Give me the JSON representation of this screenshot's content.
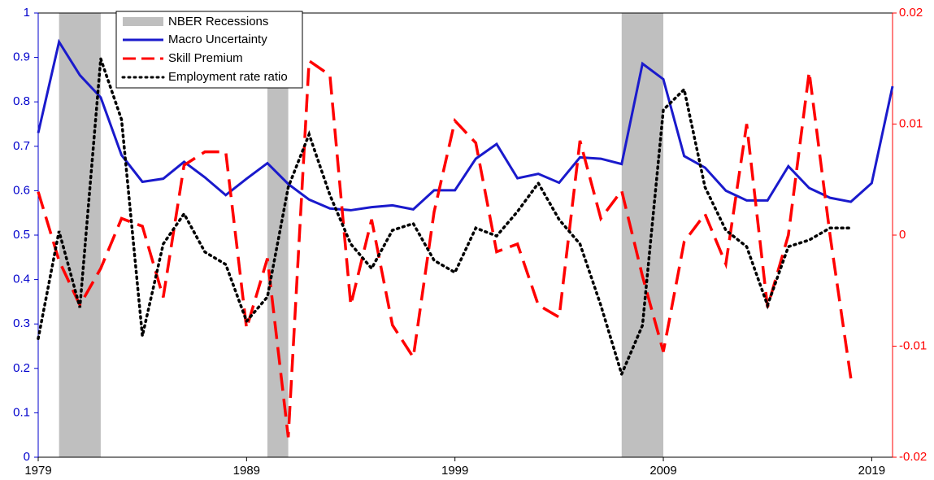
{
  "chart_data": {
    "type": "line",
    "x": [
      1979,
      1980,
      1981,
      1982,
      1983,
      1984,
      1985,
      1986,
      1987,
      1988,
      1989,
      1990,
      1991,
      1992,
      1993,
      1994,
      1995,
      1996,
      1997,
      1998,
      1999,
      2000,
      2001,
      2002,
      2003,
      2004,
      2005,
      2006,
      2007,
      2008,
      2009,
      2010,
      2011,
      2012,
      2013,
      2014,
      2015,
      2016,
      2017,
      2018,
      2019,
      2020
    ],
    "xlim": [
      1979,
      2020
    ],
    "xticks": [
      1979,
      1989,
      1999,
      2009,
      2019
    ],
    "ylim": [
      0,
      1
    ],
    "yticks": [
      0,
      0.1,
      0.2,
      0.3,
      0.4,
      0.5,
      0.6,
      0.7,
      0.8,
      0.9,
      1
    ],
    "y_color": "#0000cc",
    "y2lim": [
      -0.02,
      0.02
    ],
    "y2ticks": [
      -0.02,
      -0.01,
      0,
      0.01,
      0.02
    ],
    "y2_color": "#ff0000",
    "recessions": {
      "name": "NBER Recessions",
      "color": "#bfbfbf",
      "periods": [
        [
          1980,
          1982
        ],
        [
          1990,
          1991
        ],
        [
          2007,
          2009
        ]
      ]
    },
    "series": [
      {
        "name": "Macro Uncertainty",
        "color": "#1a1acc",
        "style": "solid",
        "values": [
          0.73,
          0.935,
          0.86,
          0.81,
          0.68,
          0.62,
          0.627,
          0.665,
          0.63,
          0.59,
          0.627,
          0.662,
          0.615,
          0.58,
          0.56,
          0.556,
          0.563,
          0.567,
          0.558,
          0.601,
          0.601,
          0.672,
          0.705,
          0.628,
          0.638,
          0.618,
          0.675,
          0.672,
          0.66,
          0.886,
          0.851,
          0.678,
          0.652,
          0.6,
          0.578,
          0.578,
          0.655,
          0.606,
          0.584,
          0.575,
          0.617,
          0.835
        ]
      },
      {
        "name": "Skill Premium",
        "color": "#ff0000",
        "style": "dashed",
        "axis": "y2",
        "values": [
          0.0039,
          -0.0023,
          -0.0063,
          -0.003,
          0.0015,
          0.0008,
          -0.0056,
          0.0063,
          0.0075,
          0.0075,
          -0.0084,
          -0.0021,
          -0.0182,
          0.0157,
          0.0144,
          -0.0063,
          0.0014,
          -0.0081,
          -0.011,
          0.0021,
          0.0103,
          0.0083,
          -0.0015,
          -0.0008,
          -0.0063,
          -0.0074,
          0.0085,
          0.0015,
          0.004,
          -0.0037,
          -0.0105,
          -0.0006,
          0.0019,
          -0.0026,
          0.01,
          -0.0065,
          0,
          0.0147,
          0,
          -0.0129,
          null,
          null
        ]
      },
      {
        "name": "Employment rate ratio",
        "color": "#000000",
        "style": "dotted",
        "values": [
          0.267,
          0.509,
          0.337,
          0.897,
          0.76,
          0.273,
          0.48,
          0.548,
          0.462,
          0.434,
          0.306,
          0.361,
          0.608,
          0.727,
          0.59,
          0.48,
          0.425,
          0.511,
          0.526,
          0.443,
          0.416,
          0.516,
          0.498,
          0.553,
          0.617,
          0.535,
          0.48,
          0.342,
          0.187,
          0.297,
          0.782,
          0.828,
          0.608,
          0.511,
          0.474,
          0.342,
          0.474,
          0.489,
          0.516,
          0.516,
          null,
          null
        ]
      }
    ]
  }
}
